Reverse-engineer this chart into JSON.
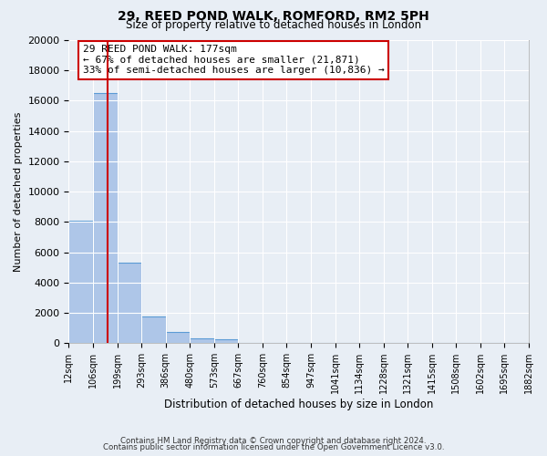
{
  "title": "29, REED POND WALK, ROMFORD, RM2 5PH",
  "subtitle": "Size of property relative to detached houses in London",
  "xlabel": "Distribution of detached houses by size in London",
  "ylabel": "Number of detached properties",
  "bar_values": [
    8100,
    16500,
    5300,
    1750,
    750,
    300,
    250,
    0,
    0,
    0,
    0,
    0,
    0,
    0,
    0,
    0,
    0,
    0,
    0
  ],
  "tick_labels": [
    "12sqm",
    "106sqm",
    "199sqm",
    "293sqm",
    "386sqm",
    "480sqm",
    "573sqm",
    "667sqm",
    "760sqm",
    "854sqm",
    "947sqm",
    "1041sqm",
    "1134sqm",
    "1228sqm",
    "1321sqm",
    "1415sqm",
    "1508sqm",
    "1602sqm",
    "1695sqm",
    "1882sqm"
  ],
  "bar_color": "#aec6e8",
  "bar_edge_color": "#5b9bd5",
  "vline_x": 1.62,
  "vline_color": "#cc0000",
  "ylim": [
    0,
    20000
  ],
  "yticks": [
    0,
    2000,
    4000,
    6000,
    8000,
    10000,
    12000,
    14000,
    16000,
    18000,
    20000
  ],
  "annotation_text": "29 REED POND WALK: 177sqm\n← 67% of detached houses are smaller (21,871)\n33% of semi-detached houses are larger (10,836) →",
  "annotation_box_color": "#ffffff",
  "annotation_box_edge": "#cc0000",
  "footer_line1": "Contains HM Land Registry data © Crown copyright and database right 2024.",
  "footer_line2": "Contains public sector information licensed under the Open Government Licence v3.0.",
  "bg_color": "#e8eef5",
  "plot_bg_color": "#e8eef5",
  "grid_color": "#ffffff",
  "n_bins": 19
}
